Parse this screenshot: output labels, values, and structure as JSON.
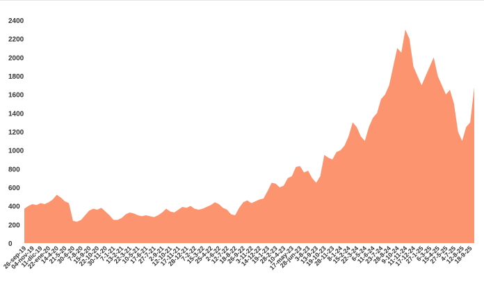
{
  "chart_data": {
    "type": "area",
    "color": "#fd9470",
    "categories": [
      "26-sep-19",
      null,
      "04-nov-19",
      null,
      "11-dic-19",
      null,
      "22-ene-20",
      null,
      "14-4-20",
      null,
      "21-5-20",
      null,
      "30-6-20",
      null,
      "7-8-20",
      null,
      "15-9-20",
      null,
      "22-10-20",
      null,
      "30-11-20",
      null,
      "7-1-21",
      null,
      "13-2-21",
      null,
      "22-3-21",
      null,
      "10-5-21",
      null,
      "17-6-21",
      null,
      "27-7-21",
      null,
      "2-9-21",
      null,
      "12-10-21",
      null,
      "17-11-21",
      null,
      "28-12-21",
      null,
      "7-2-22",
      null,
      "15-3-22",
      null,
      "25-4-22",
      null,
      "2-6-22",
      null,
      "12-7-22",
      null,
      "18-8-22",
      null,
      "26-9-22",
      null,
      "3-11-22",
      null,
      "14-12-22",
      null,
      "19-1-23",
      null,
      "28-2-23",
      null,
      "10-4-23",
      null,
      "17-may-23",
      null,
      "28-jun-23",
      null,
      "3-8-23",
      null,
      "13-9-23",
      null,
      "19-10-23",
      null,
      "28-11-23",
      null,
      "8-1-24",
      null,
      "15-2-24",
      null,
      "22-3-24",
      null,
      "6-5-24",
      null,
      "11-6-24",
      null,
      "23-7-24",
      null,
      "28-8-24",
      null,
      "9-10-24",
      null,
      "11-11-24",
      null,
      "17-12-24",
      null,
      "27-1-25",
      null,
      "6-3-25",
      null,
      "15-4-25",
      null,
      "27-5-25",
      null,
      "4-7-25",
      null,
      "12-8-25",
      null,
      "18-9-25",
      null
    ],
    "values": [
      370,
      400,
      420,
      410,
      430,
      420,
      440,
      470,
      520,
      490,
      450,
      430,
      240,
      230,
      250,
      300,
      350,
      370,
      360,
      380,
      340,
      300,
      250,
      250,
      270,
      310,
      330,
      320,
      300,
      290,
      300,
      290,
      280,
      300,
      330,
      370,
      340,
      330,
      360,
      390,
      380,
      400,
      370,
      360,
      370,
      390,
      410,
      440,
      420,
      380,
      360,
      310,
      300,
      380,
      440,
      460,
      430,
      450,
      470,
      480,
      560,
      650,
      640,
      600,
      620,
      700,
      720,
      820,
      830,
      760,
      780,
      700,
      650,
      720,
      950,
      920,
      900,
      980,
      1000,
      1050,
      1150,
      1300,
      1250,
      1150,
      1100,
      1250,
      1350,
      1400,
      1550,
      1600,
      1700,
      1900,
      2100,
      2050,
      2300,
      2200,
      1900,
      1800,
      1700,
      1800,
      1900,
      2000,
      1800,
      1700,
      1600,
      1650,
      1500,
      1200,
      1100,
      1250,
      1300,
      1680
    ],
    "ylim": [
      0,
      2400
    ],
    "yticks": [
      0,
      200,
      400,
      600,
      800,
      1000,
      1200,
      1400,
      1600,
      1800,
      2000,
      2200,
      2400
    ]
  }
}
